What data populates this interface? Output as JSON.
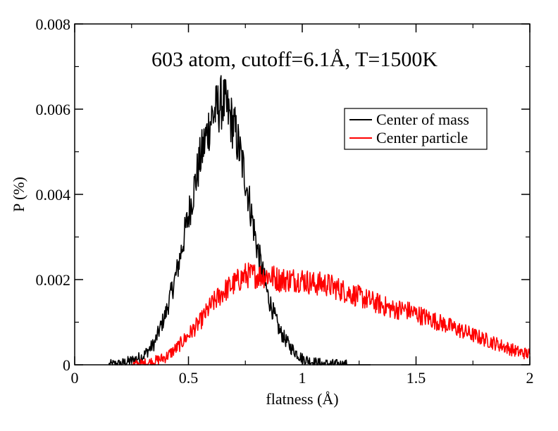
{
  "chart_data": {
    "type": "line",
    "title": "603 atom, cutoff=6.1Å, T=1500K",
    "xlabel": "flatness (Å)",
    "ylabel": "P (%)",
    "xlim": [
      0,
      2
    ],
    "ylim": [
      0,
      0.008
    ],
    "xticks": [
      {
        "value": 0,
        "label": "0"
      },
      {
        "value": 0.5,
        "label": "0.5"
      },
      {
        "value": 1,
        "label": "1"
      },
      {
        "value": 1.5,
        "label": "1.5"
      },
      {
        "value": 2,
        "label": "2"
      }
    ],
    "yticks": [
      {
        "value": 0,
        "label": "0"
      },
      {
        "value": 0.002,
        "label": "0.002"
      },
      {
        "value": 0.004,
        "label": "0.004"
      },
      {
        "value": 0.006,
        "label": "0.006"
      },
      {
        "value": 0.008,
        "label": "0.008"
      }
    ],
    "legend_position": "top-right",
    "grid": false,
    "series": [
      {
        "name": "Center of mass",
        "color": "#000000",
        "x": [
          0.15,
          0.2,
          0.25,
          0.3,
          0.35,
          0.4,
          0.45,
          0.5,
          0.55,
          0.6,
          0.65,
          0.7,
          0.75,
          0.8,
          0.85,
          0.9,
          0.95,
          1.0,
          1.05,
          1.1,
          1.15,
          1.2,
          1.3
        ],
        "y": [
          0.0,
          2e-05,
          0.0001,
          0.0002,
          0.0005,
          0.0012,
          0.0022,
          0.0035,
          0.0048,
          0.0058,
          0.0062,
          0.0056,
          0.0044,
          0.0028,
          0.0016,
          0.0008,
          0.0004,
          0.00015,
          6e-05,
          2e-05,
          1e-05,
          0.0,
          0.0
        ]
      },
      {
        "name": "Center particle",
        "color": "#ff0000",
        "x": [
          0.25,
          0.3,
          0.35,
          0.4,
          0.45,
          0.5,
          0.55,
          0.6,
          0.65,
          0.7,
          0.75,
          0.8,
          0.85,
          0.9,
          0.95,
          1.0,
          1.05,
          1.1,
          1.15,
          1.2,
          1.25,
          1.3,
          1.35,
          1.4,
          1.45,
          1.5,
          1.55,
          1.6,
          1.65,
          1.7,
          1.75,
          1.8,
          1.85,
          1.9,
          1.95,
          2.0
        ],
        "y": [
          0.0,
          2e-05,
          8e-05,
          0.00018,
          0.0004,
          0.0007,
          0.001,
          0.0014,
          0.0017,
          0.0019,
          0.0021,
          0.0021,
          0.0021,
          0.002,
          0.002,
          0.002,
          0.0019,
          0.0019,
          0.0018,
          0.0017,
          0.0016,
          0.0015,
          0.0014,
          0.0013,
          0.0013,
          0.0012,
          0.0011,
          0.001,
          0.0009,
          0.0008,
          0.0007,
          0.0006,
          0.0005,
          0.0004,
          0.0003,
          0.00025
        ]
      }
    ]
  }
}
